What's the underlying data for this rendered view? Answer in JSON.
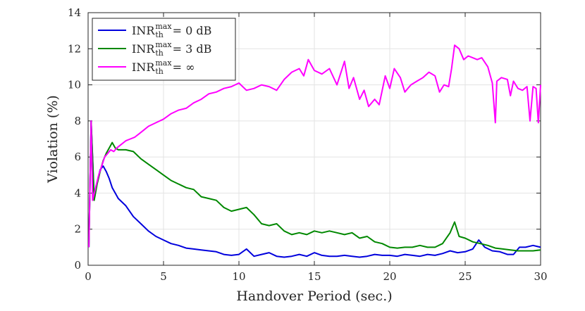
{
  "chart_data": {
    "type": "line",
    "title": "",
    "xlabel": "Handover Period (sec.)",
    "ylabel": "Violation (%)",
    "xlim": [
      0,
      30
    ],
    "ylim": [
      0,
      14
    ],
    "xticks": [
      0,
      5,
      10,
      15,
      20,
      25,
      30
    ],
    "yticks": [
      0,
      2,
      4,
      6,
      8,
      10,
      12,
      14
    ],
    "grid": true,
    "legend_position": "top-left",
    "series": [
      {
        "name": "INR_th^max = 0 dB",
        "legend": {
          "main": "INR",
          "sub": "th",
          "sup": "max",
          "rest": " = 0 dB"
        },
        "color": "#0000dd",
        "x": [
          0.05,
          0.2,
          0.4,
          0.6,
          0.8,
          1.0,
          1.2,
          1.4,
          1.6,
          1.8,
          2.0,
          2.5,
          3.0,
          3.5,
          4.0,
          4.5,
          5.0,
          5.5,
          6.0,
          6.5,
          7.0,
          7.5,
          8.0,
          8.5,
          9.0,
          9.5,
          10.0,
          10.5,
          11.0,
          11.5,
          12.0,
          12.5,
          13.0,
          13.5,
          14.0,
          14.5,
          15.0,
          15.5,
          16.0,
          16.5,
          17.0,
          17.5,
          18.0,
          18.5,
          19.0,
          19.5,
          20.0,
          20.5,
          21.0,
          21.5,
          22.0,
          22.5,
          23.0,
          23.5,
          24.0,
          24.5,
          25.0,
          25.5,
          25.9,
          26.3,
          26.8,
          27.3,
          27.8,
          28.2,
          28.6,
          29.0,
          29.5,
          30.0
        ],
        "y": [
          1.0,
          8.0,
          3.8,
          4.6,
          5.3,
          5.5,
          5.2,
          4.8,
          4.3,
          4.0,
          3.7,
          3.3,
          2.7,
          2.3,
          1.9,
          1.6,
          1.4,
          1.2,
          1.1,
          0.95,
          0.9,
          0.85,
          0.8,
          0.75,
          0.6,
          0.55,
          0.6,
          0.9,
          0.5,
          0.6,
          0.7,
          0.5,
          0.45,
          0.5,
          0.6,
          0.5,
          0.7,
          0.55,
          0.5,
          0.5,
          0.55,
          0.5,
          0.45,
          0.5,
          0.6,
          0.55,
          0.55,
          0.5,
          0.6,
          0.55,
          0.5,
          0.6,
          0.55,
          0.65,
          0.8,
          0.7,
          0.75,
          0.9,
          1.4,
          1.0,
          0.8,
          0.75,
          0.6,
          0.6,
          1.0,
          1.0,
          1.1,
          1.0
        ]
      },
      {
        "name": "INR_th^max = 3 dB",
        "legend": {
          "main": "INR",
          "sub": "th",
          "sup": "max",
          "rest": " = 3 dB"
        },
        "color": "#008800",
        "x": [
          0.05,
          0.2,
          0.4,
          0.6,
          0.8,
          1.0,
          1.2,
          1.4,
          1.6,
          1.8,
          2.0,
          2.5,
          3.0,
          3.5,
          4.0,
          4.5,
          5.0,
          5.5,
          6.0,
          6.5,
          7.0,
          7.5,
          8.0,
          8.5,
          9.0,
          9.5,
          10.0,
          10.5,
          11.0,
          11.5,
          12.0,
          12.5,
          13.0,
          13.5,
          14.0,
          14.5,
          15.0,
          15.5,
          16.0,
          16.5,
          17.0,
          17.5,
          18.0,
          18.5,
          19.0,
          19.5,
          20.0,
          20.5,
          21.0,
          21.5,
          22.0,
          22.5,
          23.0,
          23.5,
          24.0,
          24.3,
          24.6,
          25.0,
          25.5,
          26.0,
          26.5,
          27.0,
          27.5,
          28.0,
          28.5,
          29.0,
          29.5,
          30.0
        ],
        "y": [
          1.0,
          8.0,
          3.6,
          4.5,
          5.2,
          5.8,
          6.2,
          6.5,
          6.8,
          6.5,
          6.4,
          6.4,
          6.3,
          5.9,
          5.6,
          5.3,
          5.0,
          4.7,
          4.5,
          4.3,
          4.2,
          3.8,
          3.7,
          3.6,
          3.2,
          3.0,
          3.1,
          3.2,
          2.8,
          2.3,
          2.2,
          2.3,
          1.9,
          1.7,
          1.8,
          1.7,
          1.9,
          1.8,
          1.9,
          1.8,
          1.7,
          1.8,
          1.5,
          1.6,
          1.3,
          1.2,
          1.0,
          0.95,
          1.0,
          1.0,
          1.1,
          1.0,
          1.0,
          1.2,
          1.8,
          2.4,
          1.6,
          1.5,
          1.3,
          1.2,
          1.1,
          0.95,
          0.9,
          0.85,
          0.8,
          0.8,
          0.8,
          0.85
        ]
      },
      {
        "name": "INR_th^max = ∞",
        "legend": {
          "main": "INR",
          "sub": "th",
          "sup": "max",
          "rest": " = ∞"
        },
        "color": "#ff00ff",
        "x": [
          0.05,
          0.2,
          0.3,
          0.5,
          0.7,
          0.9,
          1.1,
          1.3,
          1.5,
          1.7,
          1.9,
          2.2,
          2.5,
          2.8,
          3.1,
          3.4,
          3.7,
          4.0,
          4.5,
          5.0,
          5.5,
          6.0,
          6.5,
          7.0,
          7.5,
          8.0,
          8.5,
          9.0,
          9.5,
          10.0,
          10.5,
          11.0,
          11.5,
          12.0,
          12.5,
          13.0,
          13.5,
          14.0,
          14.3,
          14.6,
          15.0,
          15.5,
          16.0,
          16.5,
          17.0,
          17.3,
          17.6,
          18.0,
          18.3,
          18.6,
          19.0,
          19.3,
          19.7,
          20.0,
          20.3,
          20.7,
          21.0,
          21.4,
          21.8,
          22.2,
          22.6,
          23.0,
          23.3,
          23.6,
          23.9,
          24.1,
          24.3,
          24.6,
          24.9,
          25.2,
          25.5,
          25.8,
          26.1,
          26.5,
          26.8,
          27.0,
          27.1,
          27.4,
          27.8,
          28.0,
          28.2,
          28.5,
          28.8,
          29.1,
          29.3,
          29.5,
          29.7,
          29.85,
          30.0
        ],
        "y": [
          1.0,
          8.0,
          3.6,
          4.3,
          5.0,
          5.5,
          6.0,
          6.2,
          6.4,
          6.3,
          6.5,
          6.7,
          6.9,
          7.0,
          7.1,
          7.3,
          7.5,
          7.7,
          7.9,
          8.1,
          8.4,
          8.6,
          8.7,
          9.0,
          9.2,
          9.5,
          9.6,
          9.8,
          9.9,
          10.1,
          9.7,
          9.8,
          10.0,
          9.9,
          9.7,
          10.3,
          10.7,
          10.9,
          10.5,
          11.4,
          10.8,
          10.6,
          10.9,
          10.0,
          11.3,
          9.8,
          10.4,
          9.2,
          9.7,
          8.8,
          9.2,
          8.9,
          10.5,
          9.8,
          10.9,
          10.4,
          9.6,
          10.0,
          10.2,
          10.4,
          10.7,
          10.5,
          9.6,
          10.0,
          9.9,
          10.9,
          12.2,
          12.0,
          11.4,
          11.6,
          11.5,
          11.4,
          11.5,
          11.0,
          10.1,
          7.9,
          10.2,
          10.4,
          10.3,
          9.4,
          10.2,
          9.8,
          9.7,
          9.9,
          8.0,
          9.9,
          9.8,
          7.9,
          10.0
        ]
      }
    ]
  }
}
